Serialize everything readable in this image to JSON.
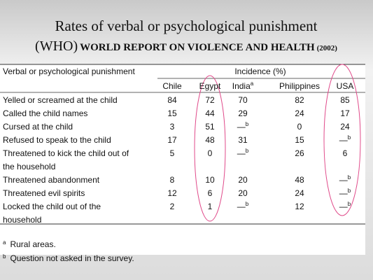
{
  "title": {
    "line1": "Rates of verbal or psychological punishment",
    "prefix": "(WHO)",
    "report": "WORLD REPORT ON VIOLENCE AND HEALTH",
    "year": "(2002)"
  },
  "table": {
    "row_header": "Verbal or psychological punishment",
    "group_header": "Incidence (%)",
    "columns": [
      {
        "text": "Chile"
      },
      {
        "text": "Egypt"
      },
      {
        "text": "India",
        "sup": "a"
      },
      {
        "text": "Philippines"
      },
      {
        "text": "USA"
      }
    ],
    "rows": [
      {
        "label": [
          "Yelled or screamed at the child"
        ],
        "values": [
          84,
          72,
          70,
          82,
          85
        ]
      },
      {
        "label": [
          "Called the child names"
        ],
        "values": [
          15,
          44,
          29,
          24,
          17
        ]
      },
      {
        "label": [
          "Cursed at the child"
        ],
        "values": [
          3,
          51,
          {
            "text": "—",
            "sup": "b"
          },
          0,
          24
        ]
      },
      {
        "label": [
          "Refused to speak to the child"
        ],
        "values": [
          17,
          48,
          31,
          15,
          {
            "text": "—",
            "sup": "b"
          }
        ]
      },
      {
        "label": [
          "Threatened to kick the child out of",
          "the household"
        ],
        "values": [
          5,
          0,
          {
            "text": "—",
            "sup": "b"
          },
          26,
          6
        ]
      },
      {
        "label": [
          "Threatened abandonment"
        ],
        "values": [
          8,
          10,
          20,
          48,
          {
            "text": "—",
            "sup": "b"
          }
        ]
      },
      {
        "label": [
          "Threatened evil spirits"
        ],
        "values": [
          12,
          6,
          20,
          24,
          {
            "text": "—",
            "sup": "b"
          }
        ]
      },
      {
        "label": [
          "Locked the child out of the",
          "household"
        ],
        "values": [
          2,
          1,
          {
            "text": "—",
            "sup": "b"
          },
          12,
          {
            "text": "—",
            "sup": "b"
          }
        ]
      }
    ],
    "footnotes": [
      {
        "mark": "a",
        "text": "Rural areas."
      },
      {
        "mark": "b",
        "text": "Question not asked in the survey."
      }
    ]
  }
}
